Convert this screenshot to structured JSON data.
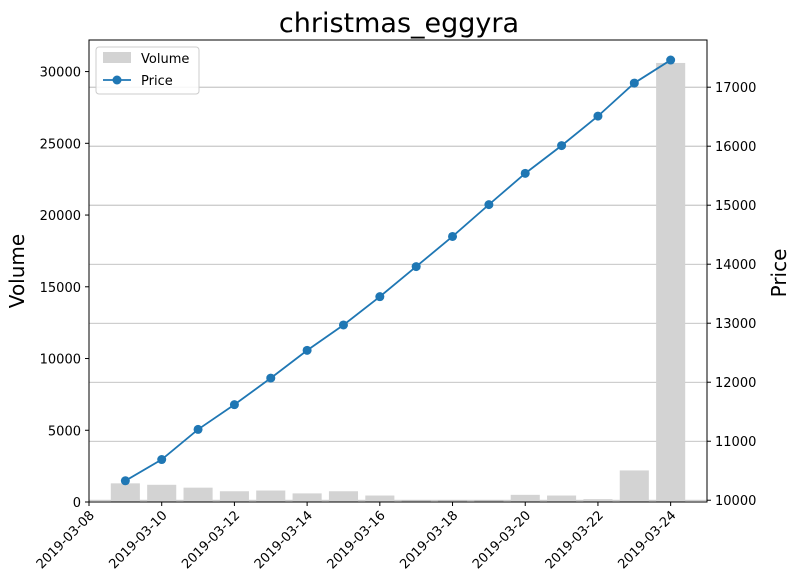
{
  "chart_data": {
    "type": "bar+line",
    "title": "christmas_eggyra",
    "x": [
      "2019-03-09",
      "2019-03-10",
      "2019-03-11",
      "2019-03-12",
      "2019-03-13",
      "2019-03-14",
      "2019-03-15",
      "2019-03-16",
      "2019-03-17",
      "2019-03-18",
      "2019-03-19",
      "2019-03-20",
      "2019-03-21",
      "2019-03-22",
      "2019-03-23",
      "2019-03-24"
    ],
    "x_ticks": [
      "2019-03-08",
      "2019-03-10",
      "2019-03-12",
      "2019-03-14",
      "2019-03-16",
      "2019-03-18",
      "2019-03-20",
      "2019-03-22",
      "2019-03-24"
    ],
    "x_range": [
      "2019-03-08",
      "2019-03-25"
    ],
    "series": [
      {
        "name": "Volume",
        "type": "bar",
        "axis": "left",
        "color": "#d3d3d3",
        "values": [
          1300,
          1200,
          1000,
          750,
          800,
          600,
          750,
          450,
          100,
          100,
          100,
          500,
          450,
          200,
          2200,
          30600
        ]
      },
      {
        "name": "Price",
        "type": "line",
        "axis": "right",
        "color": "#1f77b4",
        "values": [
          10330,
          10690,
          11200,
          11620,
          12070,
          12540,
          12970,
          13450,
          13960,
          14470,
          15010,
          15540,
          16010,
          16510,
          17070,
          17460
        ]
      }
    ],
    "y_left": {
      "label": "Volume",
      "range": [
        0,
        32200
      ],
      "ticks": [
        0,
        5000,
        10000,
        15000,
        20000,
        25000,
        30000
      ]
    },
    "y_right": {
      "label": "Price",
      "range": [
        9970,
        17800
      ],
      "ticks": [
        10000,
        11000,
        12000,
        13000,
        14000,
        15000,
        16000,
        17000
      ]
    },
    "grid": "horizontal, right axis",
    "legend_position": "top-left"
  }
}
